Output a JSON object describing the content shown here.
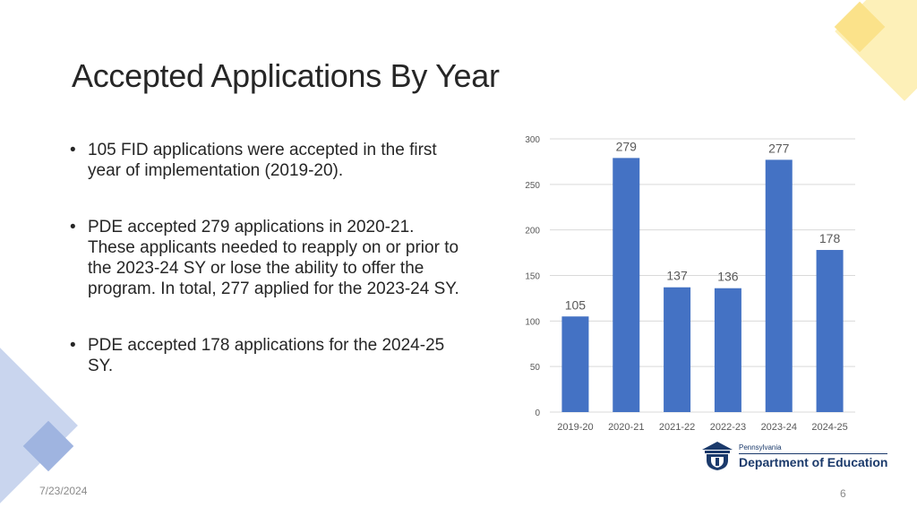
{
  "slide": {
    "title": "Accepted Applications By Year",
    "bullets": [
      "105 FID applications were accepted in the first year of implementation (2019-20).",
      "PDE accepted 279 applications in 2020-21. These applicants needed to reapply on or prior to the 2023-24 SY or lose the ability to offer the program. In total, 277 applied for the 2023-24 SY.",
      "PDE accepted 178 applications for the 2024-25 SY."
    ],
    "footer_date": "7/23/2024",
    "page_number": "6",
    "logo": {
      "line1": "Pennsylvania",
      "line2": "Department of Education"
    }
  },
  "colors": {
    "bar": "#4472c4",
    "grid": "#d9d9d9",
    "axis_text": "#595959",
    "decor_yellow": "#fdeaa0",
    "decor_blue": "#b4c7e7"
  },
  "chart_data": {
    "type": "bar",
    "categories": [
      "2019-20",
      "2020-21",
      "2021-22",
      "2022-23",
      "2023-24",
      "2024-25"
    ],
    "values": [
      105,
      279,
      137,
      136,
      277,
      178
    ],
    "yticks": [
      0,
      50,
      100,
      150,
      200,
      250,
      300
    ],
    "ylim": [
      0,
      300
    ],
    "grid": true,
    "data_labels": true,
    "title": "",
    "xlabel": "",
    "ylabel": ""
  }
}
